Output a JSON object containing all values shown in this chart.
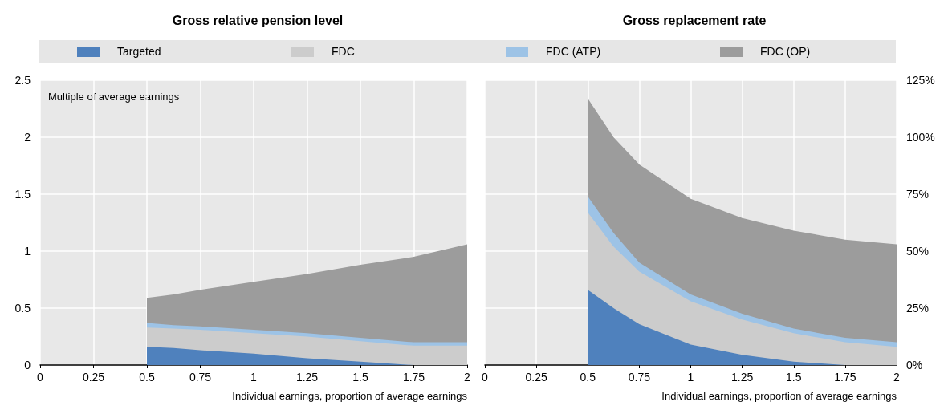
{
  "chart_data": [
    {
      "type": "area",
      "title": "Gross relative pension level",
      "xlabel": "Individual earnings, proportion of average earnings",
      "stacked": true,
      "grid": true,
      "legend": "top",
      "x": [
        0.5,
        0.625,
        0.75,
        1,
        1.25,
        1.5,
        1.75,
        2
      ],
      "xlim": [
        0,
        2
      ],
      "xticks": [
        0,
        0.25,
        0.5,
        0.75,
        1,
        1.25,
        1.5,
        1.75,
        2
      ],
      "ylim": [
        0,
        2.5
      ],
      "yticks": [
        0,
        0.5,
        1,
        1.5,
        2,
        2.5
      ],
      "annotations": [
        "Multiple of average earnings"
      ],
      "series": [
        {
          "name": "Targeted",
          "color": "#4f81bd",
          "values": [
            0.16,
            0.15,
            0.13,
            0.1,
            0.06,
            0.03,
            0,
            0
          ]
        },
        {
          "name": "FDC",
          "color": "#cccccc",
          "values": [
            0.17,
            0.17,
            0.18,
            0.18,
            0.19,
            0.18,
            0.17,
            0.17
          ]
        },
        {
          "name": "FDC (ATP)",
          "color": "#9dc3e6",
          "values": [
            0.04,
            0.03,
            0.03,
            0.03,
            0.03,
            0.03,
            0.03,
            0.03
          ]
        },
        {
          "name": "FDC (OP)",
          "color": "#9c9c9c",
          "values": [
            0.22,
            0.27,
            0.32,
            0.42,
            0.52,
            0.64,
            0.75,
            0.86
          ]
        }
      ]
    },
    {
      "type": "area",
      "title": "Gross replacement rate",
      "xlabel": "Individual earnings, proportion of average earnings",
      "stacked": true,
      "grid": true,
      "x": [
        0.5,
        0.625,
        0.75,
        1,
        1.25,
        1.5,
        1.75,
        2
      ],
      "xlim": [
        0,
        2
      ],
      "xticks": [
        0,
        0.25,
        0.5,
        0.75,
        1,
        1.25,
        1.5,
        1.75,
        2
      ],
      "ylim": [
        0,
        125
      ],
      "yticks": [
        {
          "value": 0,
          "label": "0%"
        },
        {
          "value": 25,
          "label": "25%"
        },
        {
          "value": 50,
          "label": "50%"
        },
        {
          "value": 75,
          "label": "75%"
        },
        {
          "value": 100,
          "label": "100%"
        },
        {
          "value": 125,
          "label": "125%"
        }
      ],
      "series": [
        {
          "color": "#4f81bd",
          "values": [
            33,
            25,
            18,
            9,
            4.5,
            1.5,
            0,
            0
          ]
        },
        {
          "color": "#cccccc",
          "values": [
            34,
            27,
            23,
            19,
            15.5,
            12.5,
            10,
            8
          ]
        },
        {
          "color": "#9dc3e6",
          "values": [
            7,
            6,
            4,
            3,
            2.5,
            2,
            2,
            2
          ]
        },
        {
          "color": "#9c9c9c",
          "values": [
            43,
            42,
            43,
            42,
            42,
            43,
            43,
            43
          ]
        }
      ]
    }
  ]
}
